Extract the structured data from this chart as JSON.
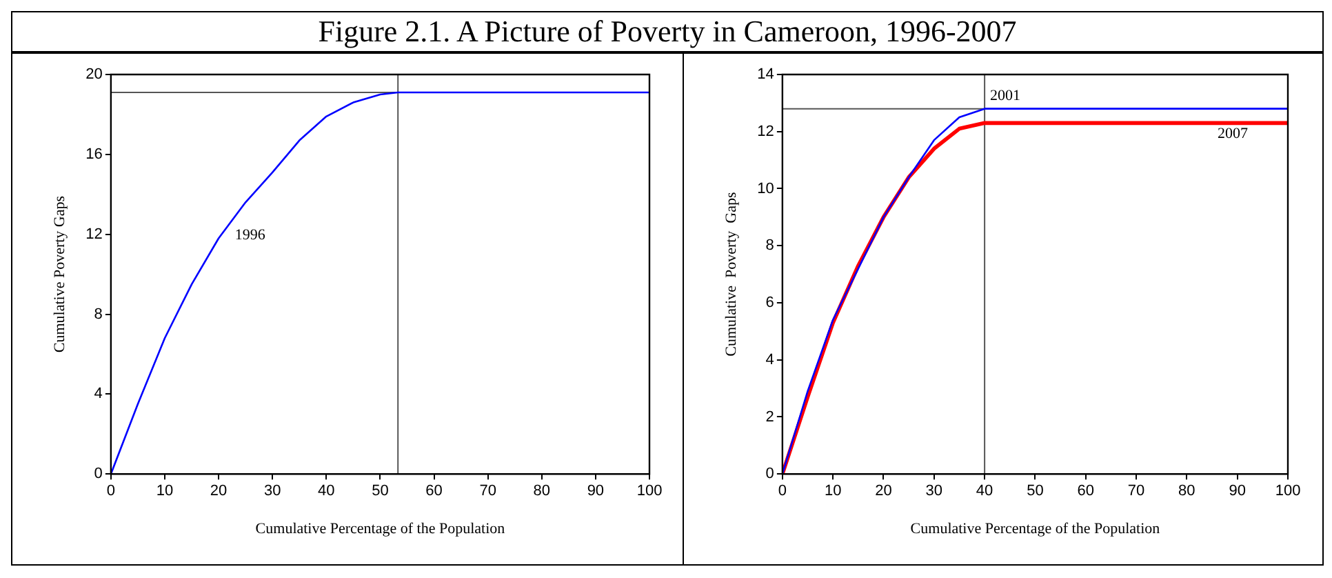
{
  "chart_data": [
    {
      "type": "line",
      "title": "Figure 2.1.  A Picture of Poverty in Cameroon, 1996-2007",
      "xlabel": "Cumulative Percentage of the Population",
      "ylabel": "Cumulative Poverty Gaps",
      "xlim": [
        0,
        100
      ],
      "ylim": [
        0,
        20
      ],
      "xticks": [
        0,
        10,
        20,
        30,
        40,
        50,
        60,
        70,
        80,
        90,
        100
      ],
      "yticks": [
        0,
        4,
        8,
        12,
        16,
        20
      ],
      "series": [
        {
          "color": "#0000ff",
          "x": [
            0,
            5,
            10,
            15,
            20,
            25,
            30,
            35,
            40,
            45,
            50,
            53.3,
            100
          ],
          "values": [
            0,
            3.5,
            6.8,
            9.5,
            11.8,
            13.6,
            15.1,
            16.7,
            17.9,
            18.6,
            19.0,
            19.1,
            19.1
          ]
        }
      ],
      "ref_lines": [
        {
          "axis": "y",
          "value": 19.1,
          "color": "#555555"
        },
        {
          "axis": "x",
          "value": 53.3,
          "color": "#555555"
        }
      ],
      "annotations": [
        {
          "text": "1996",
          "x": 22,
          "y": 12.5
        }
      ]
    },
    {
      "type": "line",
      "xlabel": "Cumulative Percentage of the Population",
      "ylabel": "Cumulative  Poverty  Gaps",
      "xlim": [
        0,
        100
      ],
      "ylim": [
        0,
        14
      ],
      "xticks": [
        0,
        10,
        20,
        30,
        40,
        50,
        60,
        70,
        80,
        90,
        100
      ],
      "yticks": [
        0,
        2,
        4,
        6,
        8,
        10,
        12,
        14
      ],
      "series": [
        {
          "color": "#0000ff",
          "x": [
            0,
            5,
            10,
            15,
            20,
            25,
            30,
            35,
            40,
            100
          ],
          "values": [
            0,
            2.9,
            5.4,
            7.2,
            9.0,
            10.4,
            11.7,
            12.5,
            12.8,
            12.8
          ]
        },
        {
          "color": "#ff0000",
          "x": [
            0,
            5,
            10,
            15,
            20,
            25,
            30,
            35,
            40,
            100
          ],
          "values": [
            0,
            2.7,
            5.3,
            7.3,
            9.0,
            10.4,
            11.4,
            12.1,
            12.3,
            12.3
          ]
        }
      ],
      "ref_lines": [
        {
          "axis": "y",
          "value": 12.8,
          "color": "#555555"
        },
        {
          "axis": "x",
          "value": 40,
          "color": "#555555"
        }
      ],
      "annotations": [
        {
          "text": "2001",
          "x": 40,
          "y": 12.8
        },
        {
          "text": "2007",
          "x": 85,
          "y": 12.3
        }
      ]
    }
  ]
}
